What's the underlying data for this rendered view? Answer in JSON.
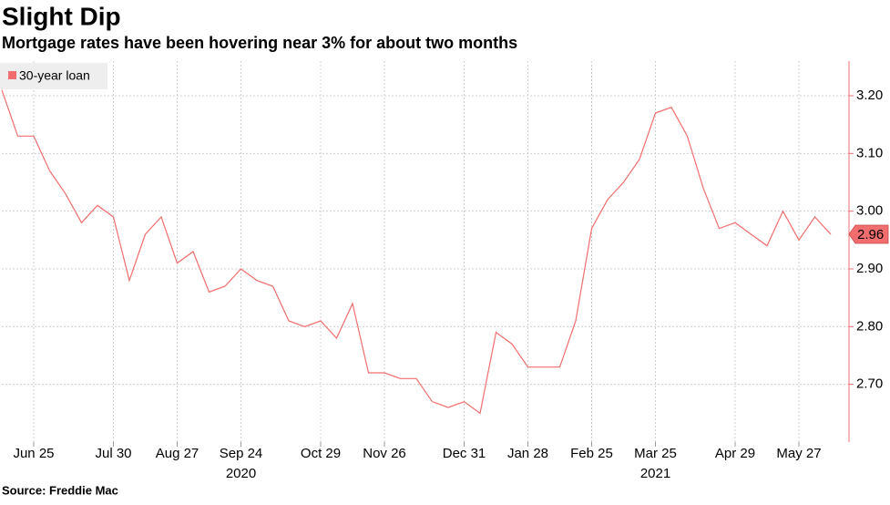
{
  "chart_data": {
    "type": "line",
    "title": "Slight Dip",
    "subtitle": "Mortgage rates have been hovering near 3% for about two months",
    "source": "Source: Freddie Mac",
    "categories": [
      null,
      null,
      "Jun 25",
      null,
      null,
      null,
      null,
      "Jul 30",
      null,
      null,
      null,
      "Aug 27",
      null,
      null,
      null,
      "Sep 24",
      null,
      null,
      null,
      null,
      "Oct 29",
      null,
      null,
      null,
      "Nov 26",
      null,
      null,
      null,
      null,
      "Dec 31",
      null,
      null,
      null,
      "Jan 28",
      null,
      null,
      null,
      "Feb 25",
      null,
      null,
      null,
      "Mar 25",
      null,
      null,
      null,
      null,
      "Apr 29",
      null,
      null,
      null,
      "May 27",
      null,
      null
    ],
    "year_labels": [
      {
        "category": "Sep 24",
        "label": "2020"
      },
      {
        "category": "Mar 25",
        "label": "2021"
      }
    ],
    "series": [
      {
        "name": "30-year loan",
        "color": "#f26d6d",
        "values": [
          3.21,
          3.13,
          3.13,
          3.07,
          3.03,
          2.98,
          3.01,
          2.99,
          2.88,
          2.96,
          2.99,
          2.91,
          2.93,
          2.86,
          2.87,
          2.9,
          2.88,
          2.87,
          2.81,
          2.8,
          2.81,
          2.78,
          2.84,
          2.72,
          2.72,
          2.71,
          2.71,
          2.67,
          2.66,
          2.67,
          2.65,
          2.79,
          2.77,
          2.73,
          2.73,
          2.73,
          2.81,
          2.97,
          3.02,
          3.05,
          3.09,
          3.17,
          3.18,
          3.13,
          3.04,
          2.97,
          2.98,
          2.96,
          2.94,
          3.0,
          2.95,
          2.99,
          2.96
        ],
        "last_value_label": "2.96"
      }
    ],
    "ylim": [
      2.6,
      3.26
    ],
    "yticks": [
      {
        "value": 2.7,
        "label": "2.70"
      },
      {
        "value": 2.8,
        "label": "2.80"
      },
      {
        "value": 2.9,
        "label": "2.90"
      },
      {
        "value": 3.0,
        "label": "3.00"
      },
      {
        "value": 3.1,
        "label": "3.10"
      },
      {
        "value": 3.2,
        "label": "3.20"
      }
    ],
    "y_axis_side": "right",
    "grid": true,
    "legend": "top-left"
  }
}
